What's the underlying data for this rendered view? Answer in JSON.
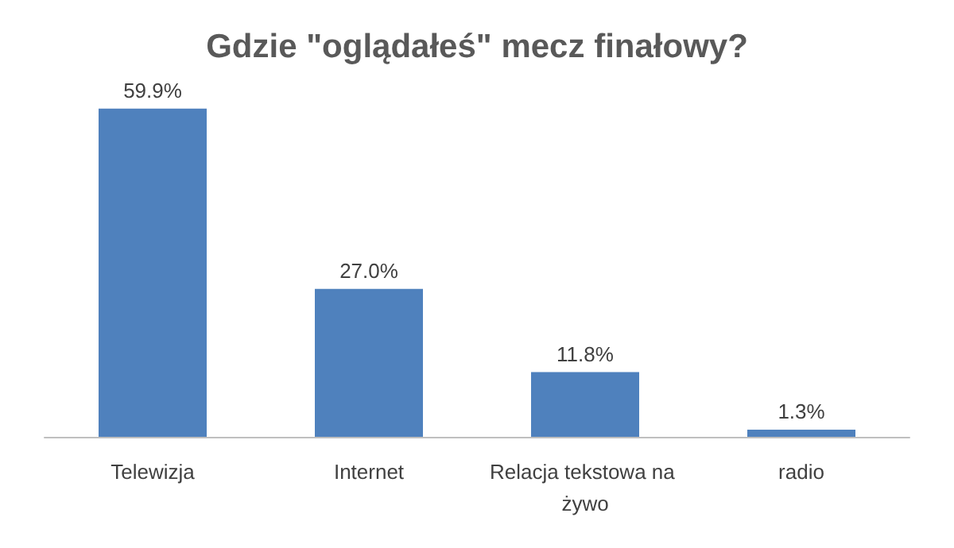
{
  "chart_data": {
    "type": "bar",
    "title": "Gdzie \"oglądałeś\" mecz finałowy?",
    "categories": [
      "Telewizja",
      "Internet",
      "Relacja tekstowa na żywo",
      "radio"
    ],
    "values": [
      59.9,
      27.0,
      11.8,
      1.3
    ],
    "color": "#4f81bd",
    "value_labels": [
      "59.9%",
      "27.0%",
      "11.8%",
      "1.3%"
    ],
    "grid": false
  }
}
